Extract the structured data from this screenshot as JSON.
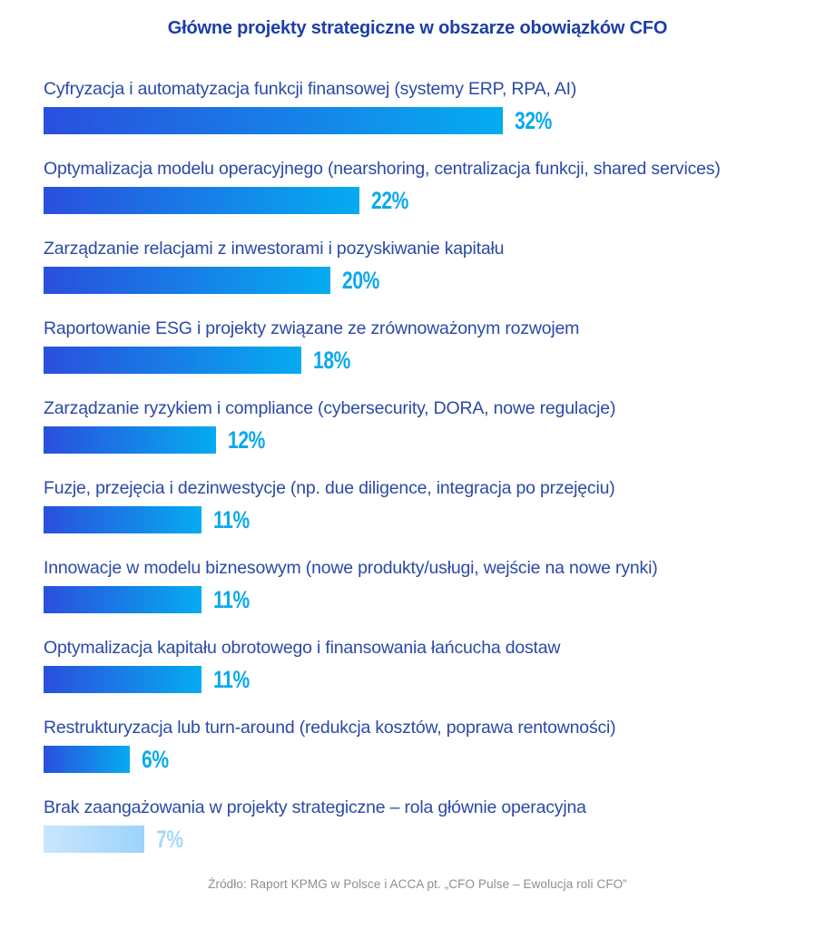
{
  "chart_data": {
    "type": "bar",
    "orientation": "horizontal",
    "title": "Główne projekty strategiczne w obszarze obowiązków CFO",
    "categories": [
      "Cyfryzacja i automatyzacja funkcji finansowej (systemy ERP, RPA, AI)",
      "Optymalizacja modelu operacyjnego (nearshoring, centralizacja funkcji, shared services)",
      "Zarządzanie relacjami z inwestorami i pozyskiwanie kapitału",
      "Raportowanie ESG i projekty związane ze zrównoważonym rozwojem",
      "Zarządzanie ryzykiem i compliance (cybersecurity, DORA, nowe regulacje)",
      "Fuzje, przejęcia i dezinwestycje (np. due diligence, integracja po przejęciu)",
      "Innowacje w modelu biznesowym (nowe produkty/usługi, wejście na nowe rynki)",
      "Optymalizacja kapitału obrotowego i finansowania łańcucha dostaw",
      "Restrukturyzacja lub turn-around (redukcja kosztów, poprawa rentowności)",
      "Brak zaangażowania w projekty strategiczne – rola głównie operacyjna"
    ],
    "values": [
      32,
      22,
      20,
      18,
      12,
      11,
      11,
      11,
      6,
      7
    ],
    "value_labels": [
      "32%",
      "22%",
      "20%",
      "18%",
      "12%",
      "11%",
      "11%",
      "11%",
      "6%",
      "7%"
    ],
    "muted_indices": [
      9
    ],
    "xlim": [
      0,
      32
    ],
    "grid": false,
    "legend": false,
    "axis_ticks_shown": false,
    "pixels_per_percent": 15.8,
    "source": "Źródło: Raport KPMG w Polsce i ACCA pt. „CFO Pulse – Ewolucja roli CFO”",
    "colors": {
      "title": "#1c3ea8",
      "category_label": "#2b49a8",
      "bar_gradient_start": "#2a4fdd",
      "bar_gradient_end": "#05acf0",
      "muted_bar_gradient_start": "#c9e6fc",
      "muted_bar_gradient_end": "#9cd3f9",
      "value_label": "#0aa9ee",
      "muted_value_label": "#a6d9f9",
      "source_text": "#8e8e8e",
      "background": "#ffffff"
    }
  }
}
